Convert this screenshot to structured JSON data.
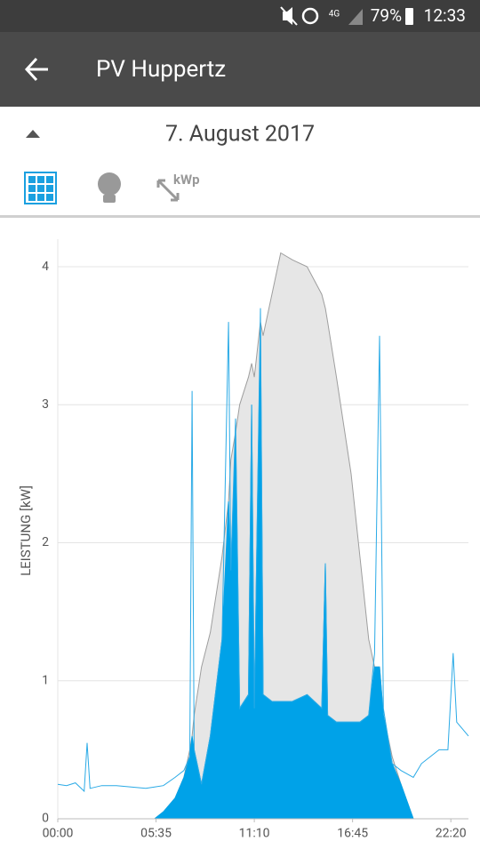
{
  "status_bar": {
    "network": "4G",
    "battery": "79%",
    "time": "12:33"
  },
  "app_bar": {
    "title": "PV Huppertz"
  },
  "date": "7. August 2017",
  "toolbar": {
    "kwp_label": "kWp"
  },
  "chart_data": {
    "type": "area",
    "y_label": "LEISTUNG [kW]",
    "x": [
      0,
      30,
      60,
      90,
      100,
      110,
      150,
      200,
      250,
      300,
      330,
      360,
      400,
      430,
      450,
      458,
      465,
      490,
      520,
      560,
      582,
      590,
      606,
      620,
      650,
      661,
      670,
      691,
      700,
      730,
      760,
      800,
      850,
      900,
      912,
      920,
      950,
      1000,
      1030,
      1060,
      1080,
      1097,
      1110,
      1140,
      1170,
      1212,
      1240,
      1270,
      1300,
      1330,
      1348,
      1360,
      1380,
      1400
    ],
    "xlim": [
      0,
      1400
    ],
    "xticks": [
      {
        "value": 0,
        "label": "00:00"
      },
      {
        "value": 335,
        "label": "05:35"
      },
      {
        "value": 670,
        "label": "11:10"
      },
      {
        "value": 1005,
        "label": "16:45"
      },
      {
        "value": 1340,
        "label": "22:20"
      }
    ],
    "ylim": [
      0,
      4.2
    ],
    "yticks": [
      0,
      1,
      2,
      3,
      4
    ],
    "grid": true,
    "series": [
      {
        "color": "#e6e6e6",
        "line_color": "#9e9e9e",
        "fill": true,
        "values": [
          0,
          0,
          0,
          0,
          0,
          0,
          0,
          0,
          0,
          0,
          0,
          0.05,
          0.15,
          0.3,
          0.5,
          0.6,
          0.75,
          1.1,
          1.35,
          1.9,
          2.3,
          2.6,
          2.8,
          3.0,
          3.2,
          3.3,
          3.2,
          3.6,
          3.5,
          3.8,
          4.1,
          4.05,
          4.0,
          3.8,
          3.7,
          3.6,
          3.2,
          2.5,
          1.9,
          1.3,
          1.1,
          1.1,
          0.75,
          0.45,
          0.25,
          0,
          0,
          0,
          0,
          0,
          0,
          0,
          0,
          0
        ]
      },
      {
        "color": "#00a2e8",
        "line_color": "#00a2e8",
        "fill": true,
        "values": [
          0,
          0,
          0,
          0,
          0,
          0,
          0,
          0,
          0,
          0,
          0,
          0.05,
          0.15,
          0.3,
          0.45,
          0.6,
          0.5,
          0.25,
          0.6,
          1.3,
          2.3,
          1.8,
          2.8,
          0.8,
          0.9,
          3.0,
          0.8,
          3.6,
          0.9,
          0.85,
          0.85,
          0.85,
          0.9,
          0.8,
          1.85,
          0.75,
          0.7,
          0.7,
          0.7,
          0.75,
          1.1,
          1.1,
          0.75,
          0.4,
          0.25,
          0,
          0,
          0,
          0,
          0,
          0,
          0,
          0,
          0
        ]
      },
      {
        "color": "#2aaae6",
        "line_color": "#2aaae6",
        "fill": false,
        "values": [
          0.25,
          0.24,
          0.26,
          0.2,
          0.55,
          0.22,
          0.24,
          0.24,
          0.23,
          0.22,
          0.23,
          0.24,
          0.3,
          0.35,
          0.45,
          3.1,
          0.5,
          0.25,
          0.6,
          1.3,
          3.6,
          1.8,
          2.9,
          0.8,
          0.9,
          3.0,
          0.8,
          3.7,
          0.9,
          0.85,
          0.85,
          0.85,
          0.9,
          0.8,
          1.85,
          0.75,
          0.7,
          0.7,
          0.7,
          0.75,
          1.2,
          3.5,
          0.8,
          0.4,
          0.35,
          0.3,
          0.4,
          0.45,
          0.5,
          0.5,
          1.2,
          0.7,
          0.65,
          0.6
        ]
      }
    ]
  }
}
